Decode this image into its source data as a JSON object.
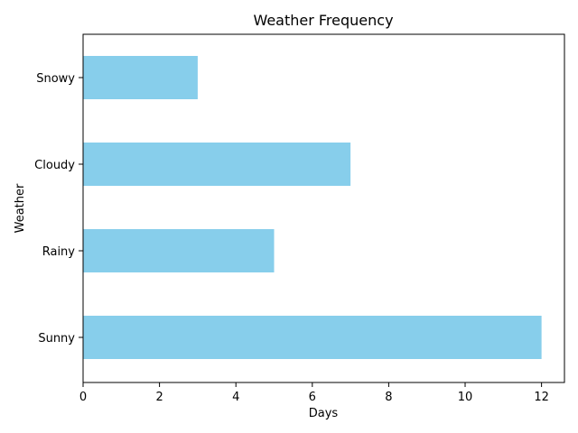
{
  "chart_data": {
    "type": "bar",
    "orientation": "horizontal",
    "title": "Weather Frequency",
    "xlabel": "Days",
    "ylabel": "Weather",
    "categories": [
      "Sunny",
      "Rainy",
      "Cloudy",
      "Snowy"
    ],
    "values": [
      12,
      5,
      7,
      3
    ],
    "xlim": [
      0,
      12.6
    ],
    "xticks": [
      0,
      2,
      4,
      6,
      8,
      10,
      12
    ],
    "grid": false,
    "legend": "none",
    "bar_color": "#87CEEB"
  }
}
